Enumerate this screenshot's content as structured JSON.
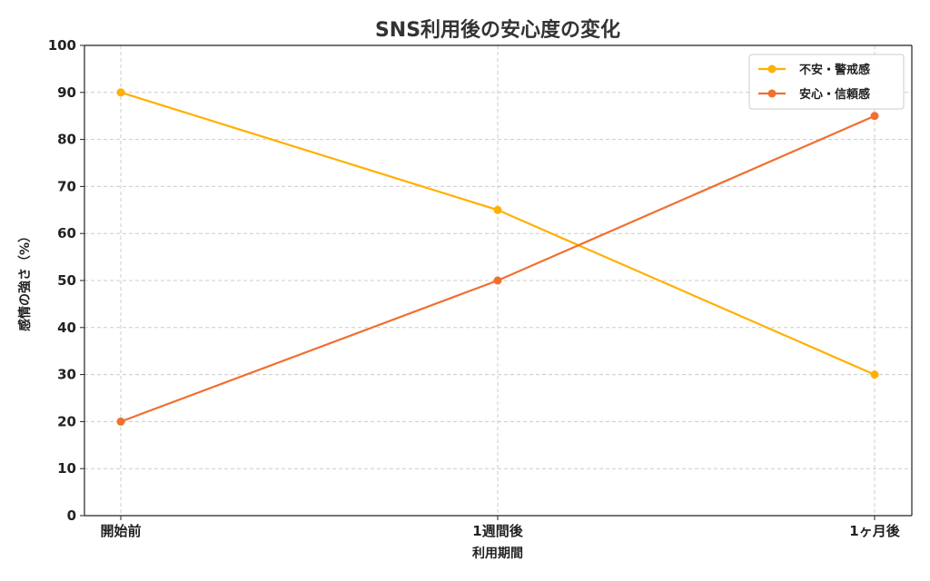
{
  "chart_data": {
    "type": "line",
    "title": "SNS利用後の安心度の変化",
    "xlabel": "利用期間",
    "ylabel": "感情の強さ（%）",
    "categories": [
      "開始前",
      "1週間後",
      "1ヶ月後"
    ],
    "ylim": [
      0,
      100
    ],
    "yticks": [
      0,
      10,
      20,
      30,
      40,
      50,
      60,
      70,
      80,
      90,
      100
    ],
    "grid": true,
    "legend_position": "top-right",
    "series": [
      {
        "name": "不安・警戒感",
        "values": [
          90,
          65,
          30
        ],
        "color": "#FFB000"
      },
      {
        "name": "安心・信頼感",
        "values": [
          20,
          50,
          85
        ],
        "color": "#F07030"
      }
    ]
  }
}
